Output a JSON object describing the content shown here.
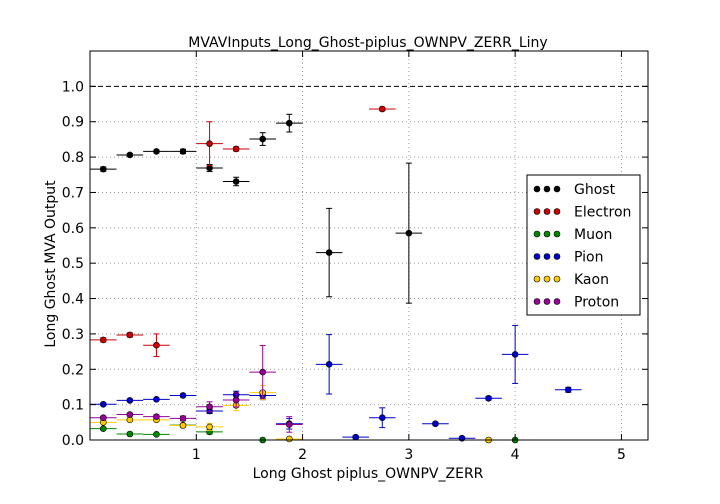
{
  "chart_data": {
    "type": "scatter",
    "title": "MVAVInputs_Long_Ghost-piplus_OWNPV_ZERR_Liny",
    "xlabel": "Long Ghost piplus_OWNPV_ZERR",
    "ylabel": "Long Ghost MVA Output",
    "xlim": [
      0.0,
      5.25
    ],
    "ylim": [
      0.0,
      1.1
    ],
    "xticks": [
      1,
      2,
      3,
      4,
      5
    ],
    "yticks": [
      0.0,
      0.1,
      0.2,
      0.3,
      0.4,
      0.5,
      0.6,
      0.7,
      0.8,
      0.9,
      1.0
    ],
    "ytick_labels": [
      "0.0",
      "0.1",
      "0.2",
      "0.3",
      "0.4",
      "0.5",
      "0.6",
      "0.7",
      "0.8",
      "0.9",
      "1.0"
    ],
    "xtick_labels": [
      "1",
      "2",
      "3",
      "4",
      "5"
    ],
    "grid": true,
    "reference_line": 1.0,
    "legend_position": "right",
    "series": [
      {
        "name": "Ghost",
        "color": "#000000",
        "xerr": 0.125,
        "x": [
          0.125,
          0.375,
          0.625,
          0.875,
          1.125,
          1.375,
          1.625,
          1.875,
          2.25,
          3.0
        ],
        "y": [
          0.766,
          0.806,
          0.816,
          0.816,
          0.769,
          0.731,
          0.851,
          0.896,
          0.53,
          0.585
        ],
        "yerr": [
          0.006,
          0.004,
          0.004,
          0.006,
          0.01,
          0.012,
          0.018,
          0.025,
          0.125,
          0.198
        ]
      },
      {
        "name": "Electron",
        "color": "#cc0000",
        "xerr": 0.125,
        "x": [
          0.125,
          0.375,
          0.625,
          1.125,
          1.375,
          2.75
        ],
        "y": [
          0.283,
          0.297,
          0.268,
          0.838,
          0.823,
          0.936
        ],
        "yerr": [
          0.006,
          0.006,
          0.032,
          0.062,
          0.006,
          0.005
        ]
      },
      {
        "name": "Muon",
        "color": "#008800",
        "xerr": 0.125,
        "x": [
          0.125,
          0.375,
          0.625,
          0.875,
          1.125,
          1.625,
          4.0
        ],
        "y": [
          0.032,
          0.017,
          0.016,
          0.042,
          0.023,
          0.0,
          0.0
        ],
        "yerr": [
          0.003,
          0.003,
          0.003,
          0.004,
          0.006,
          0.0,
          0.0
        ]
      },
      {
        "name": "Pion",
        "color": "#0000cc",
        "xerr": 0.125,
        "x": [
          0.125,
          0.375,
          0.625,
          0.875,
          1.125,
          1.375,
          1.625,
          1.875,
          2.25,
          2.5,
          2.75,
          3.25,
          3.5,
          3.75,
          4.0,
          4.5
        ],
        "y": [
          0.101,
          0.112,
          0.115,
          0.126,
          0.082,
          0.128,
          0.126,
          0.046,
          0.214,
          0.008,
          0.063,
          0.046,
          0.005,
          0.118,
          0.242,
          0.142
        ],
        "yerr": [
          0.003,
          0.003,
          0.003,
          0.004,
          0.007,
          0.01,
          0.012,
          0.015,
          0.084,
          0.004,
          0.028,
          0.004,
          0.003,
          0.005,
          0.082,
          0.007
        ]
      },
      {
        "name": "Kaon",
        "color": "#ffcc00",
        "xerr": 0.125,
        "x": [
          0.125,
          0.375,
          0.625,
          0.875,
          1.125,
          1.375,
          1.625,
          1.875,
          3.75
        ],
        "y": [
          0.05,
          0.057,
          0.057,
          0.041,
          0.037,
          0.098,
          0.134,
          0.003,
          0.0
        ],
        "yerr": [
          0.004,
          0.004,
          0.005,
          0.006,
          0.01,
          0.015,
          0.02,
          0.003,
          0.0
        ]
      },
      {
        "name": "Proton",
        "color": "#990099",
        "xerr": 0.125,
        "x": [
          0.125,
          0.375,
          0.625,
          0.875,
          1.125,
          1.375,
          1.625,
          1.875
        ],
        "y": [
          0.063,
          0.072,
          0.066,
          0.061,
          0.094,
          0.113,
          0.192,
          0.044
        ],
        "yerr": [
          0.004,
          0.004,
          0.005,
          0.007,
          0.014,
          0.02,
          0.075,
          0.022
        ]
      }
    ]
  }
}
